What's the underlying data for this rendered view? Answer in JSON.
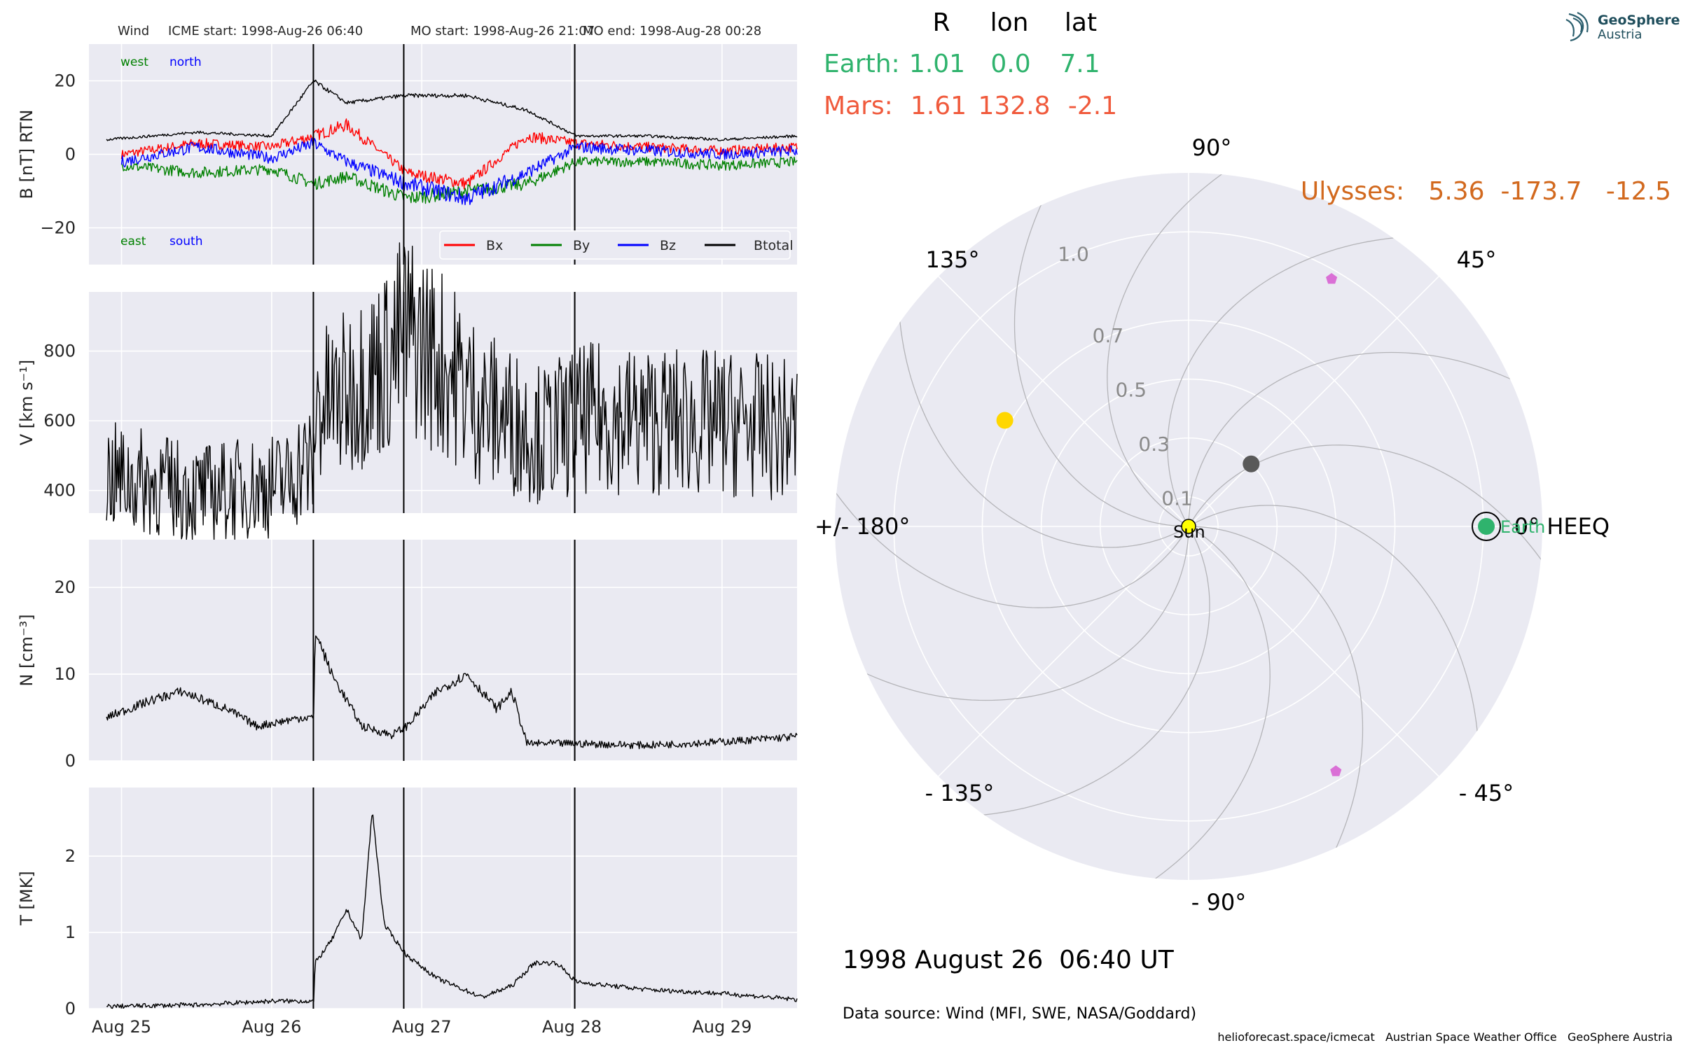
{
  "header": {
    "spacecraft": "Wind",
    "icme_start": "ICME start: 1998-Aug-26 06:40",
    "mo_start": "MO start: 1998-Aug-26 21:07",
    "mo_end": "MO end: 1998-Aug-28 00:28"
  },
  "logo": {
    "line1": "GeoSphere",
    "line2": "Austria"
  },
  "colors": {
    "bx": "#ff0000",
    "by": "#008000",
    "bz": "#0000ff",
    "btotal": "#000000",
    "earth": "#2fb36d",
    "mars": "#f05a3c",
    "ulysses": "#d2691e",
    "sun": "#ffff00",
    "panel_bg": "#eaeaf2",
    "pentagon": "#da70d6",
    "yellow_body": "#ffd700",
    "grey_body": "#595959"
  },
  "chart_data": [
    {
      "type": "line",
      "panel": "magnetic field",
      "ylabel": "B [nT] RTN",
      "ylim": [
        -30,
        30
      ],
      "yticks": [
        20,
        0,
        -20
      ],
      "ytick_labels": [
        "20",
        "0",
        "−20"
      ],
      "x_range_days": [
        "1998-08-24T21:00",
        "1998-08-29T12:00"
      ],
      "annotations": {
        "west": "west",
        "north": "north",
        "east": "east",
        "south": "south"
      },
      "legend": {
        "placement": "lower-right",
        "entries": [
          "Bx",
          "By",
          "Bz",
          "Btotal"
        ]
      },
      "series": [
        {
          "name": "Bx",
          "x": [
            25.0,
            25.5,
            26.0,
            26.28,
            26.5,
            26.9,
            27.3,
            27.7,
            28.03,
            28.5,
            29.0,
            29.5
          ],
          "values": [
            0,
            3,
            2,
            5,
            8,
            -5,
            -8,
            5,
            3,
            2,
            1,
            2
          ]
        },
        {
          "name": "By",
          "x": [
            25.0,
            25.5,
            26.0,
            26.28,
            26.5,
            26.9,
            27.3,
            27.7,
            28.03,
            28.5,
            29.0,
            29.5
          ],
          "values": [
            -3,
            -5,
            -4,
            -8,
            -6,
            -12,
            -10,
            -8,
            -2,
            -2,
            -3,
            -2
          ]
        },
        {
          "name": "Bz",
          "x": [
            25.0,
            25.5,
            26.0,
            26.28,
            26.5,
            26.9,
            27.3,
            27.7,
            28.03,
            28.5,
            29.0,
            29.5
          ],
          "values": [
            -2,
            2,
            -1,
            3,
            -2,
            -8,
            -12,
            -5,
            2,
            1,
            0,
            1
          ]
        },
        {
          "name": "Btotal",
          "x": [
            24.9,
            25.5,
            26.0,
            26.28,
            26.5,
            26.88,
            27.3,
            27.7,
            28.03,
            28.5,
            29.0,
            29.5
          ],
          "values": [
            4,
            6,
            5,
            20,
            14,
            16,
            16,
            12,
            5,
            5,
            4,
            5
          ]
        }
      ]
    },
    {
      "type": "line",
      "panel": "speed",
      "ylabel": "V [km s⁻¹]",
      "ylim": [
        335,
        970
      ],
      "yticks": [
        800,
        600,
        400
      ],
      "ytick_labels": [
        "800",
        "600",
        "400"
      ],
      "series": [
        {
          "name": "",
          "x": [
            24.9,
            25.2,
            25.5,
            25.8,
            26.1,
            26.2,
            26.28,
            26.29,
            26.45,
            26.6,
            26.8,
            26.88,
            27.0,
            27.2,
            27.4,
            27.6,
            27.8,
            28.03,
            28.2,
            28.5,
            28.8,
            29.1,
            29.5
          ],
          "values": [
            440,
            420,
            390,
            405,
            420,
            480,
            460,
            640,
            660,
            720,
            780,
            860,
            820,
            740,
            640,
            600,
            560,
            600,
            610,
            600,
            595,
            590,
            570
          ]
        }
      ]
    },
    {
      "type": "line",
      "panel": "density",
      "ylabel": "N [cm⁻³]",
      "ylim": [
        0,
        25.5
      ],
      "yticks": [
        20,
        10,
        0
      ],
      "ytick_labels": [
        "20",
        "10",
        "0"
      ],
      "series": [
        {
          "name": "",
          "x": [
            24.9,
            25.2,
            25.4,
            25.7,
            25.9,
            26.2,
            26.28,
            26.29,
            26.4,
            26.6,
            26.8,
            26.9,
            27.1,
            27.3,
            27.5,
            27.6,
            27.7,
            28.0,
            28.5,
            29.0,
            29.5
          ],
          "values": [
            5,
            7,
            8,
            6,
            4,
            5,
            5,
            15,
            10,
            4,
            3,
            4,
            8,
            10,
            6,
            8,
            2,
            2,
            1.8,
            2.2,
            2.8
          ]
        }
      ]
    },
    {
      "type": "line",
      "panel": "temperature",
      "ylabel": "T [MK]",
      "ylim": [
        0,
        2.9
      ],
      "yticks": [
        2,
        1,
        0
      ],
      "ytick_labels": [
        "2",
        "1",
        "0"
      ],
      "xtick_labels": [
        "Aug 25",
        "Aug 26",
        "Aug 27",
        "Aug 28",
        "Aug 29"
      ],
      "xticks": [
        25,
        26,
        27,
        28,
        29
      ],
      "series": [
        {
          "name": "",
          "x": [
            24.9,
            25.5,
            26.0,
            26.28,
            26.29,
            26.4,
            26.5,
            26.6,
            26.67,
            26.75,
            26.9,
            27.1,
            27.4,
            27.6,
            27.75,
            27.9,
            28.03,
            28.5,
            29.0,
            29.5
          ],
          "values": [
            0.03,
            0.05,
            0.1,
            0.1,
            0.6,
            0.9,
            1.3,
            0.9,
            2.6,
            1.1,
            0.7,
            0.4,
            0.15,
            0.3,
            0.6,
            0.6,
            0.35,
            0.25,
            0.2,
            0.12
          ]
        }
      ]
    },
    {
      "type": "scatter",
      "panel": "polar position",
      "angle_labels": {
        "a0": "0° HEEQ",
        "a45": "45°",
        "a90": "90°",
        "a135": "135°",
        "a180": "+/- 180°",
        "am135": "- 135°",
        "am90": "- 90°",
        "am45": "- 45°"
      },
      "r_ticks": [
        0.1,
        0.3,
        0.5,
        0.7,
        1.0
      ],
      "r_tick_labels": [
        "0.1",
        "0.3",
        "0.5",
        "0.7",
        "1.0"
      ],
      "rmax": 1.2,
      "bodies": [
        {
          "label": "Sun",
          "r": 0.0,
          "lon": 0
        },
        {
          "label": "Earth",
          "r": 1.01,
          "lon": 0.0
        }
      ],
      "markers": [
        {
          "kind": "yellow",
          "r": 0.72,
          "lon": 150
        },
        {
          "kind": "grey",
          "r": 0.3,
          "lon": 45
        },
        {
          "kind": "pentagon",
          "r": 0.97,
          "lon": 60
        },
        {
          "kind": "pentagon",
          "r": 0.97,
          "lon": -59
        }
      ]
    }
  ],
  "positions": {
    "head_r": "R",
    "head_lon": "lon",
    "head_lat": "lat",
    "earth": {
      "label": "Earth:",
      "r": "1.01",
      "lon": "0.0",
      "lat": "7.1"
    },
    "mars": {
      "label": "Mars:",
      "r": "1.61",
      "lon": "132.8",
      "lat": "-2.1"
    },
    "ulysses": "Ulysses:   5.36  -173.7   -12.5"
  },
  "footer": {
    "datetime": "1998 August 26  06:40 UT",
    "source": "Data source: Wind (MFI, SWE, NASA/Goddard)",
    "credits": "helioforecast.space/icmecat   Austrian Space Weather Office   GeoSphere Austria"
  }
}
